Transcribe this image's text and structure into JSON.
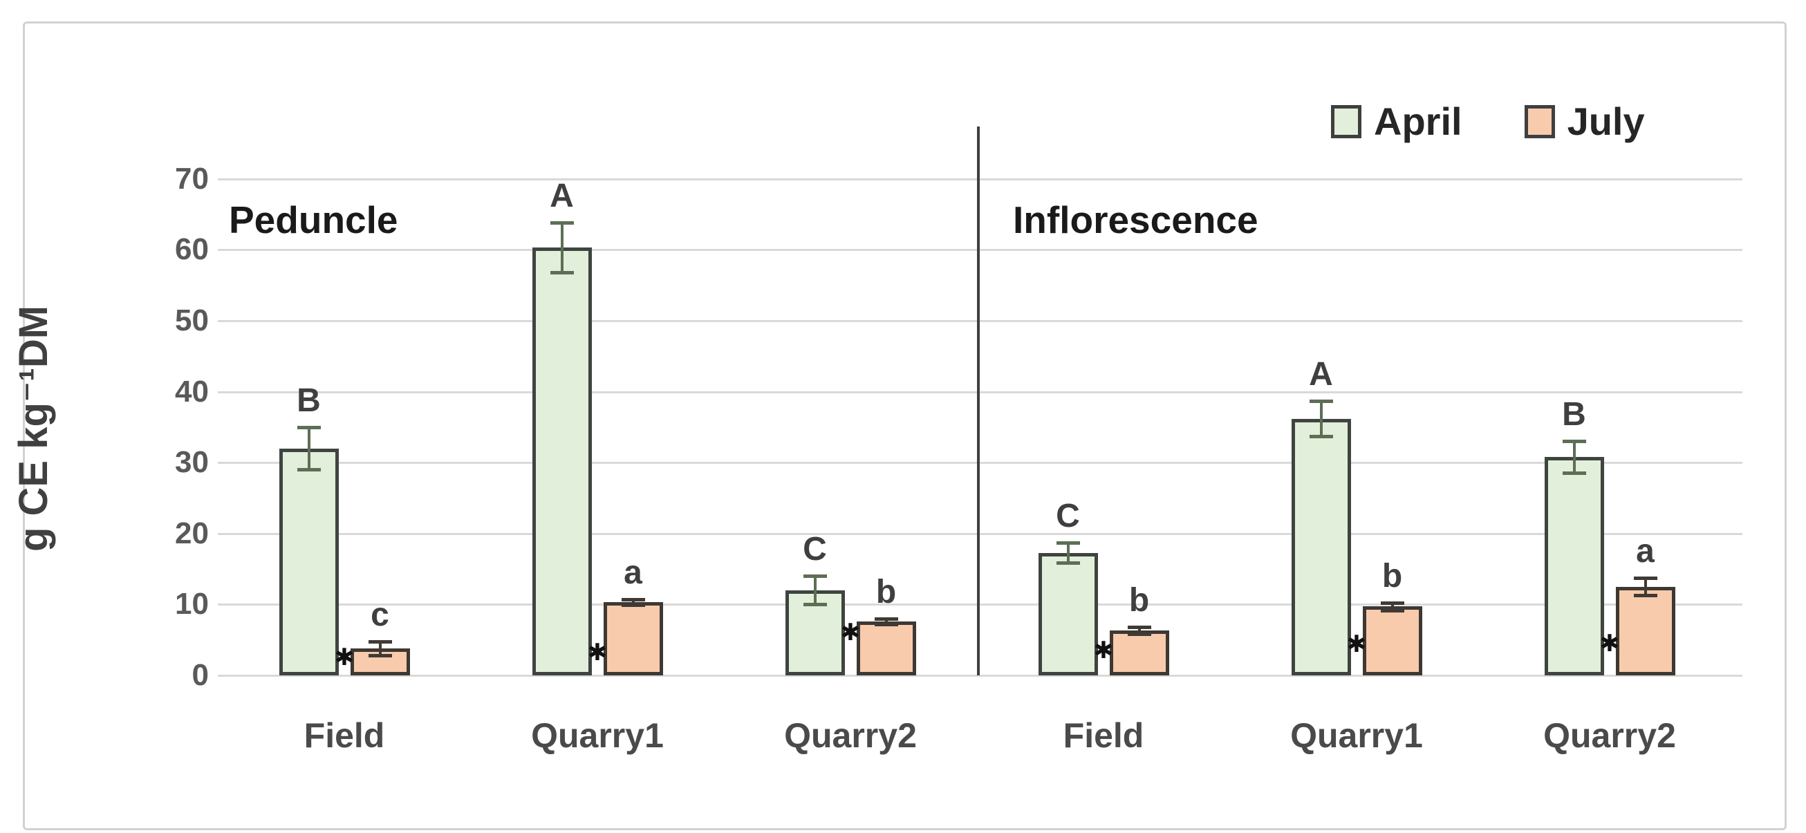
{
  "figure": {
    "background_color": "#ffffff",
    "frame_border_color": "#d2d2d2",
    "gridline_color": "#d9d9d9",
    "divider_color": "#3f3f3f"
  },
  "chart_data": {
    "type": "bar",
    "title": "",
    "ylabel": "g CE kg⁻¹DM",
    "xlabel": "",
    "ylim": [
      0,
      70
    ],
    "yticks": [
      "0",
      "10",
      "20",
      "30",
      "40",
      "50",
      "60",
      "70"
    ],
    "grid": true,
    "legend_position": "top-right",
    "sections": [
      {
        "label": "Peduncle",
        "group_indexes": [
          0,
          1,
          2
        ]
      },
      {
        "label": "Inflorescence",
        "group_indexes": [
          3,
          4,
          5
        ]
      }
    ],
    "categories": [
      "Field",
      "Quarry1",
      "Quarry2",
      "Field",
      "Quarry1",
      "Quarry2"
    ],
    "series": [
      {
        "name": "April",
        "fill": "#e2efda",
        "border": "#3f4440",
        "error_color": "#5d6e55",
        "values": [
          32,
          60.3,
          12,
          17.3,
          36.2,
          30.8
        ],
        "errors": [
          3,
          3.5,
          2,
          1.4,
          2.5,
          2.2
        ],
        "letters": [
          "B",
          "A",
          "C",
          "C",
          "A",
          "B"
        ]
      },
      {
        "name": "July",
        "fill": "#f8cbad",
        "border": "#3e3833",
        "error_color": "#403a35",
        "values": [
          3.8,
          10.3,
          7.6,
          6.3,
          9.7,
          12.5
        ],
        "errors": [
          1,
          0.4,
          0.4,
          0.5,
          0.5,
          1.2
        ],
        "letters": [
          "c",
          "a",
          "b",
          "b",
          "b",
          "a"
        ]
      }
    ],
    "significance_asterisks": {
      "symbol": "✱",
      "between_each_pair": true,
      "y_positions": [
        2.5,
        3.2,
        6.0,
        3.5,
        4.4,
        4.5
      ]
    }
  }
}
